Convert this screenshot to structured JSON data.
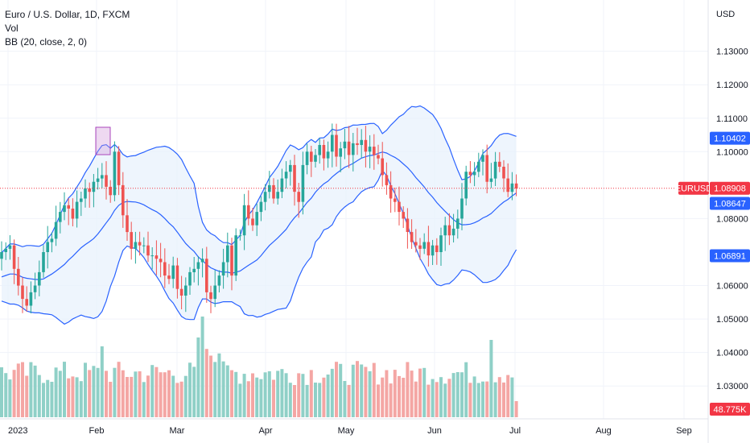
{
  "legend": {
    "symbol": "Euro / U.S. Dollar, 1D, FXCM",
    "vol": "Vol",
    "bb": "BB (20, close, 2, 0)"
  },
  "price_axis": {
    "currency": "USD",
    "ticks": [
      "1.13000",
      "1.12000",
      "1.11000",
      "1.10000",
      "1.08000",
      "1.06000",
      "1.05000",
      "1.04000",
      "1.03000"
    ]
  },
  "tags": [
    {
      "name": "bb-upper-tag",
      "label": "1.10402",
      "value": 1.10402,
      "color": "#2962ff"
    },
    {
      "name": "symbol-name-tag",
      "label": "EURUSD",
      "value": 1.08908,
      "color": "#f23645"
    },
    {
      "name": "last-price-tag",
      "label": "1.08908",
      "value": 1.08908,
      "color": "#f23645"
    },
    {
      "name": "bb-basis-tag",
      "label": "1.08647",
      "value": 1.08647,
      "color": "#2962ff"
    },
    {
      "name": "bb-lower-tag",
      "label": "1.06891",
      "value": 1.06891,
      "color": "#2962ff"
    },
    {
      "name": "volume-tag",
      "label": "48.775K",
      "color": "#f23645"
    }
  ],
  "time_axis": [
    "2023",
    "Feb",
    "Mar",
    "Apr",
    "May",
    "Jun",
    "Jul",
    "Aug",
    "Sep"
  ],
  "colors": {
    "up": "#26a69a",
    "down": "#ef5350",
    "vol_up": "#8fd0c7",
    "vol_down": "#f4a6a4",
    "band": "#2962ff",
    "band_fill": "#e8f1fc",
    "grid": "#f0f3fa",
    "price_line": "#f23645",
    "highlight": "#ce93d8"
  },
  "chart_data": {
    "type": "candlestick",
    "title": "Euro / U.S. Dollar, 1D, FXCM",
    "ylim": [
      1.025,
      1.1405
    ],
    "y_ticks": [
      1.13,
      1.12,
      1.11,
      1.1,
      1.08,
      1.06,
      1.05,
      1.04,
      1.03
    ],
    "last_price": 1.08908,
    "bollinger": {
      "period": 20,
      "source": "close",
      "stddev": 2,
      "offset": 0,
      "upper_last": 1.10402,
      "basis_last": 1.08647,
      "lower_last": 1.06891
    },
    "volume_last": "48.775K",
    "series": [
      {
        "name": "price",
        "close": [
          1.07,
          1.071,
          1.072,
          1.065,
          1.06,
          1.056,
          1.054,
          1.058,
          1.06,
          1.064,
          1.07,
          1.073,
          1.074,
          1.079,
          1.082,
          1.084,
          1.083,
          1.08,
          1.085,
          1.086,
          1.089,
          1.088,
          1.091,
          1.092,
          1.093,
          1.0895,
          1.087,
          1.1,
          1.09,
          1.081,
          1.076,
          1.071,
          1.073,
          1.072,
          1.072,
          1.069,
          1.069,
          1.068,
          1.067,
          1.063,
          1.062,
          1.066,
          1.059,
          1.057,
          1.06,
          1.064,
          1.065,
          1.067,
          1.068,
          1.058,
          1.056,
          1.06,
          1.063,
          1.067,
          1.072,
          1.063,
          1.075,
          1.075,
          1.084,
          1.08,
          1.078,
          1.082,
          1.085,
          1.088,
          1.09,
          1.086,
          1.088,
          1.092,
          1.094,
          1.096,
          1.088,
          1.085,
          1.096,
          1.1,
          1.097,
          1.099,
          1.102,
          1.098,
          1.1,
          1.105,
          1.0985,
          1.101,
          1.103,
          1.099,
          1.1025,
          1.102,
          1.1035,
          1.1,
          1.1015,
          1.099,
          1.098,
          1.093,
          1.09,
          1.086,
          1.085,
          1.082,
          1.08,
          1.076,
          1.073,
          1.072,
          1.071,
          1.073,
          1.069,
          1.072,
          1.07,
          1.075,
          1.078,
          1.075,
          1.077,
          1.08,
          1.086,
          1.094,
          1.093,
          1.094,
          1.097,
          1.099,
          1.091,
          1.092,
          1.097,
          1.0955,
          1.092,
          1.088,
          1.0905,
          1.089
        ]
      }
    ],
    "volume": {
      "name": "volume"
    }
  }
}
